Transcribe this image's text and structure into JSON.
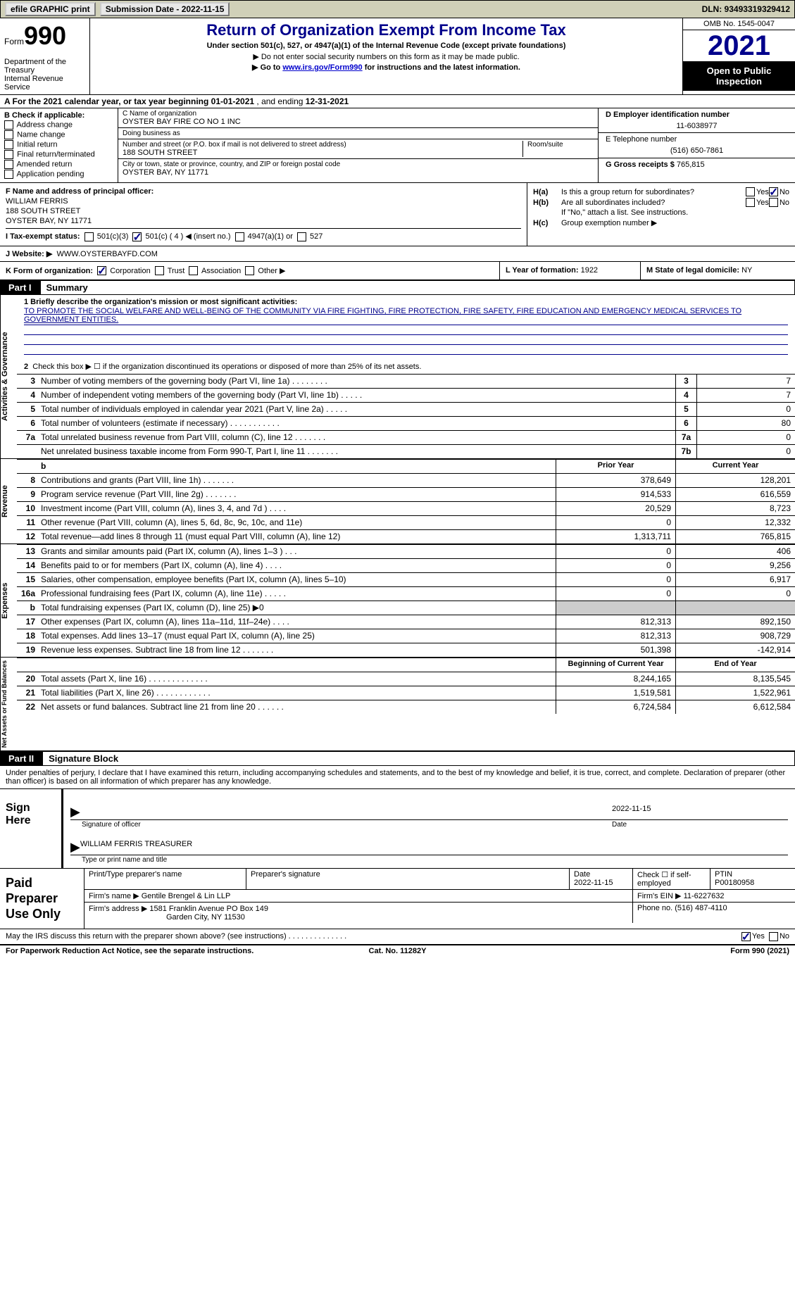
{
  "topbar": {
    "efile": "efile GRAPHIC print",
    "submission": "Submission Date - 2022-11-15",
    "dln": "DLN: 93493319329412"
  },
  "header": {
    "form_word": "Form",
    "form_num": "990",
    "dept": "Department of the Treasury\nInternal Revenue Service",
    "title": "Return of Organization Exempt From Income Tax",
    "subtitle": "Under section 501(c), 527, or 4947(a)(1) of the Internal Revenue Code (except private foundations)",
    "note1": "▶ Do not enter social security numbers on this form as it may be made public.",
    "note2_pre": "▶ Go to ",
    "note2_link": "www.irs.gov/Form990",
    "note2_post": " for instructions and the latest information.",
    "omb": "OMB No. 1545-0047",
    "year": "2021",
    "open": "Open to Public Inspection"
  },
  "rowA": {
    "pre": "A For the 2021 calendar year, or tax year beginning ",
    "begin": "01-01-2021",
    "mid": " , and ending ",
    "end": "12-31-2021"
  },
  "colB": {
    "label": "B Check if applicable:",
    "opts": [
      "Address change",
      "Name change",
      "Initial return",
      "Final return/terminated",
      "Amended return",
      "Application pending"
    ]
  },
  "colC": {
    "name_lbl": "C Name of organization",
    "name": "OYSTER BAY FIRE CO NO 1 INC",
    "dba_lbl": "Doing business as",
    "dba": "",
    "street_lbl": "Number and street (or P.O. box if mail is not delivered to street address)",
    "street": "188 SOUTH STREET",
    "room_lbl": "Room/suite",
    "city_lbl": "City or town, state or province, country, and ZIP or foreign postal code",
    "city": "OYSTER BAY, NY  11771"
  },
  "colD": {
    "ein_lbl": "D Employer identification number",
    "ein": "11-6038977",
    "tel_lbl": "E Telephone number",
    "tel": "(516) 650-7861",
    "gross_lbl": "G Gross receipts $",
    "gross": "765,815"
  },
  "rowF": {
    "lbl": "F Name and address of principal officer:",
    "name": "WILLIAM FERRIS",
    "street": "188 SOUTH STREET",
    "city": "OYSTER BAY, NY  11771",
    "i_lbl": "I Tax-exempt status:",
    "i_501c_num": "501(c) ( 4 ) ◀ (insert no.)",
    "j_lbl": "J Website: ▶",
    "j_val": "WWW.OYSTERBAYFD.COM"
  },
  "rowH": {
    "ha": "H(a)  Is this a group return for subordinates?",
    "hb": "H(b)  Are all subordinates included?",
    "hb_note": "If \"No,\" attach a list. See instructions.",
    "hc": "H(c)  Group exemption number ▶"
  },
  "rowK": {
    "lbl": "K Form of organization:",
    "opts": [
      "Corporation",
      "Trust",
      "Association",
      "Other ▶"
    ],
    "l_lbl": "L Year of formation:",
    "l_val": "1922",
    "m_lbl": "M State of legal domicile:",
    "m_val": "NY"
  },
  "part1": {
    "num": "Part I",
    "title": "Summary",
    "tabs": [
      "Activities & Governance",
      "Revenue",
      "Expenses",
      "Net Assets or Fund Balances"
    ],
    "line1_lbl": "1  Briefly describe the organization's mission or most significant activities:",
    "line1_txt": "TO PROMOTE THE SOCIAL WELFARE AND WELL-BEING OF THE COMMUNITY VIA FIRE FIGHTING, FIRE PROTECTION, FIRE SAFETY, FIRE EDUCATION AND EMERGENCY MEDICAL SERVICES TO GOVERNMENT ENTITIES.",
    "line2": "Check this box ▶ ☐ if the organization discontinued its operations or disposed of more than 25% of its net assets.",
    "gov_rows": [
      {
        "n": "3",
        "d": "Number of voting members of the governing body (Part VI, line 1a)  .   .   .   .   .   .   .   .",
        "bn": "3",
        "bv": "7"
      },
      {
        "n": "4",
        "d": "Number of independent voting members of the governing body (Part VI, line 1b)  .   .   .   .   .",
        "bn": "4",
        "bv": "7"
      },
      {
        "n": "5",
        "d": "Total number of individuals employed in calendar year 2021 (Part V, line 2a)  .   .   .   .   .",
        "bn": "5",
        "bv": "0"
      },
      {
        "n": "6",
        "d": "Total number of volunteers (estimate if necessary)   .   .   .   .   .   .   .   .   .   .   .",
        "bn": "6",
        "bv": "80"
      },
      {
        "n": "7a",
        "d": "Total unrelated business revenue from Part VIII, column (C), line 12   .   .   .   .   .   .   .",
        "bn": "7a",
        "bv": "0"
      },
      {
        "n": "",
        "d": "Net unrelated business taxable income from Form 990-T, Part I, line 11  .   .   .   .   .   .   .",
        "bn": "7b",
        "bv": "0"
      }
    ],
    "prior_hdr": "Prior Year",
    "curr_hdr": "Current Year",
    "rev_rows": [
      {
        "n": "8",
        "d": "Contributions and grants (Part VIII, line 1h)   .   .   .   .   .   .   .",
        "p": "378,649",
        "c": "128,201"
      },
      {
        "n": "9",
        "d": "Program service revenue (Part VIII, line 2g)  .   .   .   .   .   .   .",
        "p": "914,533",
        "c": "616,559"
      },
      {
        "n": "10",
        "d": "Investment income (Part VIII, column (A), lines 3, 4, and 7d )   .   .   .   .",
        "p": "20,529",
        "c": "8,723"
      },
      {
        "n": "11",
        "d": "Other revenue (Part VIII, column (A), lines 5, 6d, 8c, 9c, 10c, and 11e)",
        "p": "0",
        "c": "12,332"
      },
      {
        "n": "12",
        "d": "Total revenue—add lines 8 through 11 (must equal Part VIII, column (A), line 12)",
        "p": "1,313,711",
        "c": "765,815"
      }
    ],
    "exp_rows": [
      {
        "n": "13",
        "d": "Grants and similar amounts paid (Part IX, column (A), lines 1–3 )  .   .   .",
        "p": "0",
        "c": "406"
      },
      {
        "n": "14",
        "d": "Benefits paid to or for members (Part IX, column (A), line 4)  .   .   .   .",
        "p": "0",
        "c": "9,256"
      },
      {
        "n": "15",
        "d": "Salaries, other compensation, employee benefits (Part IX, column (A), lines 5–10)",
        "p": "0",
        "c": "6,917"
      },
      {
        "n": "16a",
        "d": "Professional fundraising fees (Part IX, column (A), line 11e)  .   .   .   .   .",
        "p": "0",
        "c": "0"
      },
      {
        "n": "b",
        "d": "Total fundraising expenses (Part IX, column (D), line 25) ▶0",
        "p": "grey",
        "c": "grey"
      },
      {
        "n": "17",
        "d": "Other expenses (Part IX, column (A), lines 11a–11d, 11f–24e)  .   .   .   .",
        "p": "812,313",
        "c": "892,150"
      },
      {
        "n": "18",
        "d": "Total expenses. Add lines 13–17 (must equal Part IX, column (A), line 25)",
        "p": "812,313",
        "c": "908,729"
      },
      {
        "n": "19",
        "d": "Revenue less expenses. Subtract line 18 from line 12  .   .   .   .   .   .   .",
        "p": "501,398",
        "c": "-142,914"
      }
    ],
    "net_hdr_p": "Beginning of Current Year",
    "net_hdr_c": "End of Year",
    "net_rows": [
      {
        "n": "20",
        "d": "Total assets (Part X, line 16)  .   .   .   .   .   .   .   .   .   .   .   .   .",
        "p": "8,244,165",
        "c": "8,135,545"
      },
      {
        "n": "21",
        "d": "Total liabilities (Part X, line 26)  .   .   .   .   .   .   .   .   .   .   .   .",
        "p": "1,519,581",
        "c": "1,522,961"
      },
      {
        "n": "22",
        "d": "Net assets or fund balances. Subtract line 21 from line 20  .   .   .   .   .   .",
        "p": "6,724,584",
        "c": "6,612,584"
      }
    ]
  },
  "part2": {
    "num": "Part II",
    "title": "Signature Block",
    "decl": "Under penalties of perjury, I declare that I have examined this return, including accompanying schedules and statements, and to the best of my knowledge and belief, it is true, correct, and complete. Declaration of preparer (other than officer) is based on all information of which preparer has any knowledge.",
    "sign_here": "Sign Here",
    "sig_date": "2022-11-15",
    "sig_lbl1": "Signature of officer",
    "sig_lbl2": "Date",
    "sig_name": "WILLIAM FERRIS  TREASURER",
    "sig_lbl3": "Type or print name and title",
    "paid_lbl": "Paid Preparer Use Only",
    "prep_name_lbl": "Print/Type preparer's name",
    "prep_sig_lbl": "Preparer's signature",
    "prep_date_lbl": "Date",
    "prep_date": "2022-11-15",
    "prep_check_lbl": "Check ☐ if self-employed",
    "ptin_lbl": "PTIN",
    "ptin": "P00180958",
    "firm_name_lbl": "Firm's name   ▶",
    "firm_name": "Gentile Brengel & Lin LLP",
    "firm_ein_lbl": "Firm's EIN ▶",
    "firm_ein": "11-6227632",
    "firm_addr_lbl": "Firm's address ▶",
    "firm_addr1": "1581 Franklin Avenue PO Box 149",
    "firm_addr2": "Garden City, NY  11530",
    "phone_lbl": "Phone no.",
    "phone": "(516) 487-4110",
    "discuss": "May the IRS discuss this return with the preparer shown above? (see instructions)  .   .   .   .   .   .   .   .   .   .   .   .   .   .",
    "foot_l": "For Paperwork Reduction Act Notice, see the separate instructions.",
    "foot_m": "Cat. No. 11282Y",
    "foot_r": "Form 990 (2021)"
  }
}
